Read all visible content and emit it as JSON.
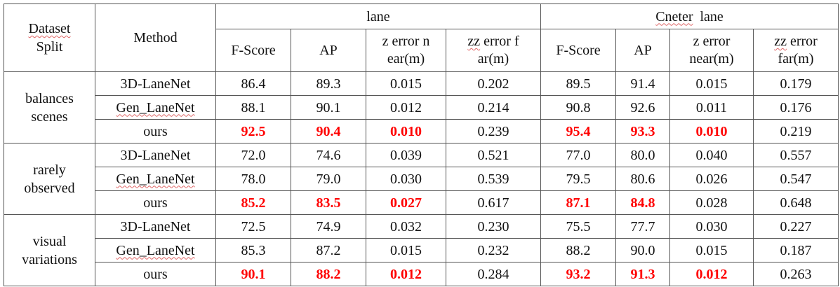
{
  "header": {
    "dataset_split": "Dataset\nSplit",
    "method": "Method",
    "lane_group": "lane",
    "center_group": "Cneter  lane",
    "lane_cols": [
      "F-Score",
      "AP",
      "z  error  n\near(m)",
      "zz  error  f\nar(m)"
    ],
    "center_cols": [
      "F-Score",
      "AP",
      "z  error\nnear(m)",
      "zz  error\nfar(m)"
    ]
  },
  "groups": [
    {
      "name": "balances\nscenes",
      "rows": [
        {
          "method": "3D-LaneNet",
          "lane": [
            "86.4",
            "89.3",
            "0.015",
            "0.202"
          ],
          "center": [
            "89.5",
            "91.4",
            "0.015",
            "0.179"
          ]
        },
        {
          "method": "Gen_LaneNet",
          "lane": [
            "88.1",
            "90.1",
            "0.012",
            "0.214"
          ],
          "center": [
            "90.8",
            "92.6",
            "0.011",
            "0.176"
          ]
        },
        {
          "method": "ours",
          "lane": [
            "92.5",
            "90.4",
            "0.010",
            "0.239"
          ],
          "center": [
            "95.4",
            "93.3",
            "0.010",
            "0.219"
          ]
        }
      ]
    },
    {
      "name": "rarely\nobserved",
      "rows": [
        {
          "method": "3D-LaneNet",
          "lane": [
            "72.0",
            "74.6",
            "0.039",
            "0.521"
          ],
          "center": [
            "77.0",
            "80.0",
            "0.040",
            "0.557"
          ]
        },
        {
          "method": "Gen_LaneNet",
          "lane": [
            "78.0",
            "79.0",
            "0.030",
            "0.539"
          ],
          "center": [
            "79.5",
            "80.6",
            "0.026",
            "0.547"
          ]
        },
        {
          "method": "ours",
          "lane": [
            "85.2",
            "83.5",
            "0.027",
            "0.617"
          ],
          "center": [
            "87.1",
            "84.8",
            "0.028",
            "0.648"
          ]
        }
      ]
    },
    {
      "name": "visual\nvariations",
      "rows": [
        {
          "method": "3D-LaneNet",
          "lane": [
            "72.5",
            "74.9",
            "0.032",
            "0.230"
          ],
          "center": [
            "75.5",
            "77.7",
            "0.030",
            "0.227"
          ]
        },
        {
          "method": "Gen_LaneNet",
          "lane": [
            "85.3",
            "87.2",
            "0.015",
            "0.232"
          ],
          "center": [
            "88.2",
            "90.0",
            "0.015",
            "0.187"
          ]
        },
        {
          "method": "ours",
          "lane": [
            "90.1",
            "88.2",
            "0.012",
            "0.284"
          ],
          "center": [
            "93.2",
            "91.3",
            "0.012",
            "0.263"
          ]
        }
      ]
    }
  ],
  "highlight_color": "#ff0000"
}
